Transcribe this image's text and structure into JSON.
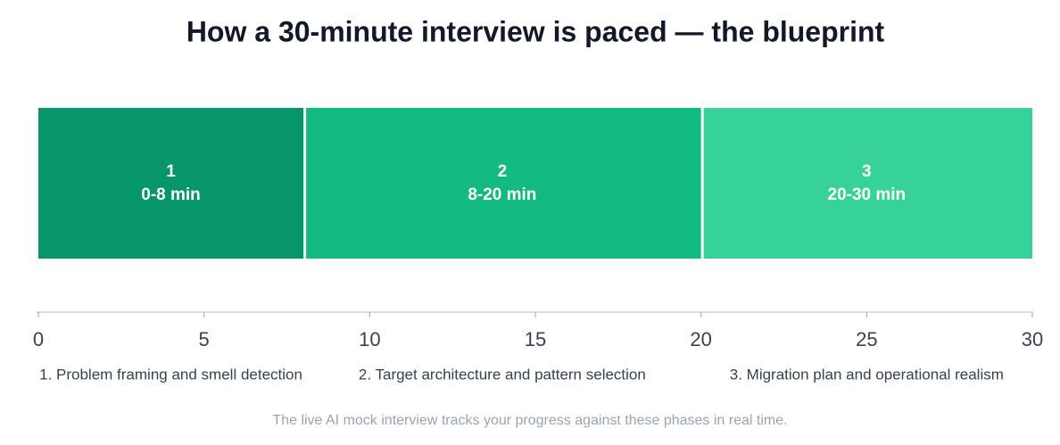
{
  "chart_data": {
    "type": "timeline",
    "title": "How a 30-minute interview is paced — the blueprint",
    "phases": [
      {
        "number": "1",
        "label": "0-8 min",
        "start": 0,
        "end": 8,
        "color": "#079669",
        "name": "1. Problem framing and smell detection"
      },
      {
        "number": "2",
        "label": "8-20 min",
        "start": 8,
        "end": 20,
        "color": "#12b981",
        "name": "2. Target architecture and pattern selection"
      },
      {
        "number": "3",
        "label": "20-30 min",
        "start": 20,
        "end": 30,
        "color": "#35d399",
        "name": "3. Migration plan and operational realism"
      }
    ],
    "xlim": [
      0,
      30
    ],
    "xticks": [
      0,
      5,
      10,
      15,
      20,
      25,
      30
    ],
    "footnote": "The live AI mock interview tracks your progress against these phases in real time."
  }
}
